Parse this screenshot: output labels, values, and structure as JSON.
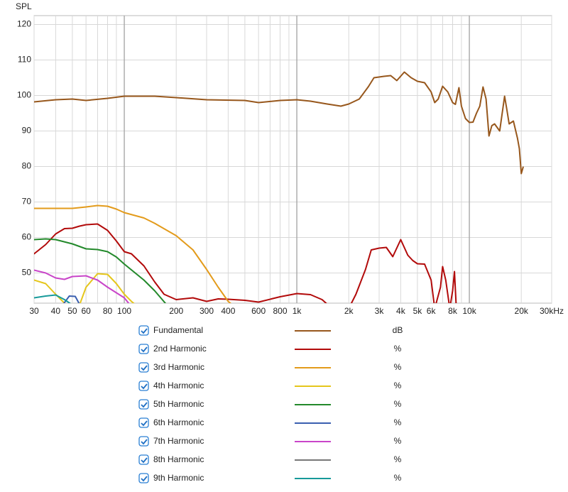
{
  "chart_data": {
    "type": "line",
    "y_axis_label": "SPL",
    "xscale": "log",
    "grid": true,
    "xlim": [
      30,
      30000
    ],
    "ylim": [
      41.5,
      122.5
    ],
    "yticks": [
      50,
      60,
      70,
      80,
      90,
      100,
      110,
      120
    ],
    "xticks": [
      30,
      40,
      50,
      60,
      80,
      100,
      200,
      300,
      400,
      600,
      800,
      {
        "value": 1000,
        "label": "1k"
      },
      {
        "value": 2000,
        "label": "2k"
      },
      {
        "value": 3000,
        "label": "3k"
      },
      {
        "value": 4000,
        "label": "4k"
      },
      {
        "value": 5000,
        "label": "5k"
      },
      {
        "value": 6000,
        "label": "6k"
      },
      {
        "value": 8000,
        "label": "8k"
      },
      {
        "value": 10000,
        "label": "10k"
      },
      {
        "value": 20000,
        "label": "20k"
      },
      {
        "value": 30000,
        "label": "30kHz"
      }
    ],
    "x_minor_gridlines": [
      70,
      90,
      500,
      700,
      900,
      7000,
      9000
    ],
    "x_major_gridlines": [
      100,
      1000,
      10000
    ],
    "series": [
      {
        "name": "Fundamental",
        "unit": "dB",
        "color": "#97571c",
        "x": [
          30,
          40,
          50,
          60,
          80,
          100,
          150,
          200,
          300,
          500,
          600,
          800,
          1000,
          1200,
          1500,
          1800,
          2000,
          2300,
          2600,
          2800,
          3200,
          3500,
          3800,
          4200,
          4600,
          5000,
          5500,
          6000,
          6300,
          6600,
          7000,
          7500,
          8000,
          8300,
          8700,
          9000,
          9500,
          10000,
          10500,
          11000,
          11500,
          12000,
          12500,
          13000,
          13500,
          14000,
          15000,
          16000,
          16500,
          17000,
          18000,
          19000,
          19500,
          20000,
          20500
        ],
        "values": [
          98.2,
          98.8,
          99,
          98.6,
          99.2,
          99.8,
          99.8,
          99.4,
          98.8,
          98.6,
          98.0,
          98.6,
          98.8,
          98.4,
          97.6,
          97.0,
          97.6,
          99,
          102.5,
          105,
          105.4,
          105.6,
          104.2,
          106.6,
          105,
          104,
          103.6,
          101,
          98,
          99,
          102.6,
          101,
          98,
          97.5,
          102.2,
          97,
          93.5,
          92.4,
          92.5,
          95,
          97,
          102.4,
          99,
          88.6,
          91.5,
          92,
          90,
          99.8,
          96,
          92,
          92.8,
          88,
          85,
          78,
          79.8
        ]
      },
      {
        "name": "2nd Harmonic",
        "unit": "%",
        "color": "#b20a0a",
        "x": [
          30,
          35,
          40,
          45,
          50,
          55,
          60,
          70,
          80,
          90,
          100,
          110,
          130,
          150,
          170,
          200,
          250,
          300,
          350,
          400,
          500,
          600,
          800,
          1000,
          1200,
          1400,
          1600,
          null,
          2000,
          2200,
          2500,
          2700,
          3000,
          3300,
          3600,
          4000,
          4400,
          4700,
          5000,
          5500,
          6000,
          6300,
          6800,
          7000,
          7300,
          7700,
          8000,
          8200,
          8400
        ],
        "values": [
          55.4,
          58,
          61,
          62.5,
          62.6,
          63.2,
          63.6,
          63.8,
          62,
          59,
          56,
          55.4,
          52,
          47.5,
          44,
          42.5,
          43,
          42,
          42.7,
          42.6,
          42.3,
          41.8,
          43.3,
          44.2,
          43.9,
          42.5,
          40,
          null,
          40,
          44,
          51,
          56.5,
          57,
          57.2,
          54.6,
          59.4,
          55,
          53.5,
          52.6,
          52.5,
          48,
          40,
          46,
          51.8,
          48,
          40,
          45,
          50.4,
          40
        ]
      },
      {
        "name": "3rd Harmonic",
        "unit": "%",
        "color": "#e39b1b",
        "x": [
          30,
          50,
          60,
          70,
          80,
          90,
          100,
          130,
          150,
          200,
          250,
          300,
          350,
          400,
          450
        ],
        "values": [
          68.2,
          68.2,
          68.6,
          69,
          68.8,
          68,
          67,
          65.5,
          64,
          60.5,
          56.5,
          51,
          46,
          42,
          40
        ]
      },
      {
        "name": "4th Harmonic",
        "unit": "%",
        "color": "#e5c61c",
        "x": [
          30,
          35,
          40,
          45,
          50,
          null,
          55,
          60,
          70,
          80,
          90,
          100,
          110,
          120
        ],
        "values": [
          48,
          47,
          44,
          41.5,
          40,
          null,
          41,
          46,
          49.8,
          49.6,
          47,
          44,
          42,
          40.5
        ]
      },
      {
        "name": "5th Harmonic",
        "unit": "%",
        "color": "#23892b",
        "x": [
          30,
          35,
          40,
          50,
          60,
          70,
          80,
          90,
          100,
          130,
          150,
          180
        ],
        "values": [
          59.4,
          59.6,
          59.4,
          58.2,
          56.8,
          56.6,
          56,
          54.5,
          52.5,
          48,
          45,
          40.5
        ]
      },
      {
        "name": "6th Harmonic",
        "unit": "%",
        "color": "#3a5fb0",
        "x": [
          44,
          48,
          52,
          56
        ],
        "values": [
          41,
          43.5,
          43.4,
          40.5
        ]
      },
      {
        "name": "7th Harmonic",
        "unit": "%",
        "color": "#c945c9",
        "x": [
          30,
          35,
          40,
          45,
          50,
          60,
          70,
          80,
          100,
          110
        ],
        "values": [
          50.8,
          50,
          48.6,
          48.2,
          49,
          49.2,
          48,
          46,
          43,
          40.5
        ]
      },
      {
        "name": "8th Harmonic",
        "unit": "%",
        "color": "#777777",
        "x": [],
        "values": []
      },
      {
        "name": "9th Harmonic",
        "unit": "%",
        "color": "#179a9a",
        "x": [
          30,
          35,
          40,
          45,
          50
        ],
        "values": [
          43,
          43.5,
          43.8,
          42.5,
          41
        ]
      }
    ]
  }
}
